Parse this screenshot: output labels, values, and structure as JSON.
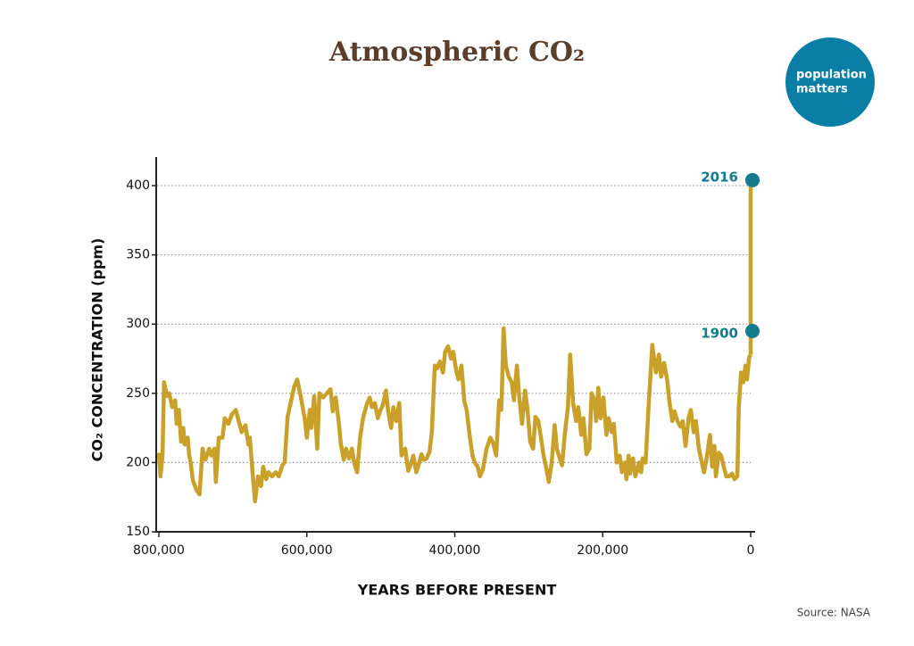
{
  "chart_data": {
    "type": "line",
    "title": "Atmospheric CO₂",
    "x_label": "YEARS BEFORE PRESENT",
    "y_label": "CO₂ CONCENTRATION (ppm)",
    "color": "#c9a12a",
    "x": [
      800000,
      798000,
      795000,
      793000,
      789000,
      786000,
      782000,
      778000,
      776000,
      773000,
      770000,
      767000,
      765000,
      761000,
      759000,
      757000,
      754000,
      749000,
      745000,
      741000,
      737000,
      732000,
      729000,
      725000,
      723000,
      719000,
      714000,
      711000,
      706000,
      701000,
      696000,
      691000,
      688000,
      683000,
      679000,
      677000,
      673000,
      670000,
      666000,
      662000,
      659000,
      655000,
      652000,
      647000,
      642000,
      638000,
      633000,
      630000,
      626000,
      621000,
      617000,
      613000,
      608000,
      603000,
      600000,
      596000,
      594000,
      590000,
      586000,
      583000,
      578000,
      573000,
      568000,
      565000,
      561000,
      557000,
      554000,
      550000,
      547000,
      543000,
      539000,
      536000,
      532000,
      528000,
      524000,
      519000,
      515000,
      512000,
      508000,
      504000,
      501000,
      497000,
      493000,
      490000,
      486000,
      483000,
      479000,
      475000,
      472000,
      467000,
      463000,
      460000,
      456000,
      452000,
      449000,
      445000,
      442000,
      438000,
      434000,
      431000,
      427000,
      424000,
      420000,
      416000,
      413000,
      409000,
      405000,
      402000,
      398000,
      395000,
      391000,
      387000,
      384000,
      380000,
      376000,
      373000,
      369000,
      366000,
      362000,
      357000,
      352000,
      348000,
      344000,
      340000,
      337000,
      334000,
      331000,
      327000,
      323000,
      320000,
      316000,
      313000,
      309000,
      305000,
      302000,
      298000,
      294000,
      291000,
      287000,
      284000,
      280000,
      276000,
      273000,
      269000,
      265000,
      262000,
      258000,
      255000,
      251000,
      247000,
      244000,
      240000,
      236000,
      233000,
      229000,
      226000,
      222000,
      218000,
      215000,
      211000,
      209000,
      206000,
      203000,
      199000,
      195000,
      192000,
      188000,
      185000,
      181000,
      177000,
      174000,
      170000,
      168000,
      165000,
      163000,
      159000,
      156000,
      153000,
      151000,
      148000,
      146000,
      142000,
      138000,
      133000,
      128000,
      124000,
      121000,
      117000,
      113000,
      110000,
      106000,
      103000,
      99000,
      95000,
      92000,
      88000,
      84000,
      81000,
      77000,
      74000,
      70000,
      66000,
      63000,
      59000,
      55000,
      52000,
      49000,
      47000,
      43000,
      40000,
      36000,
      33000,
      29000,
      25000,
      22000,
      18000,
      16000,
      13000,
      10000,
      7000,
      5000,
      2000,
      0
    ],
    "values": [
      207,
      190,
      205,
      258,
      248,
      250,
      240,
      245,
      228,
      238,
      215,
      225,
      213,
      218,
      205,
      200,
      187,
      180,
      177,
      210,
      202,
      210,
      205,
      210,
      186,
      218,
      218,
      232,
      228,
      235,
      238,
      228,
      222,
      227,
      213,
      218,
      190,
      172,
      190,
      183,
      197,
      188,
      193,
      190,
      193,
      190,
      198,
      200,
      233,
      245,
      255,
      260,
      247,
      232,
      218,
      238,
      225,
      248,
      210,
      250,
      247,
      250,
      253,
      237,
      247,
      230,
      213,
      202,
      210,
      203,
      210,
      200,
      193,
      218,
      232,
      242,
      247,
      240,
      243,
      232,
      237,
      242,
      252,
      237,
      225,
      240,
      230,
      243,
      205,
      210,
      194,
      198,
      205,
      193,
      198,
      206,
      202,
      203,
      208,
      222,
      270,
      268,
      273,
      265,
      280,
      284,
      275,
      280,
      266,
      260,
      270,
      244,
      238,
      220,
      205,
      200,
      197,
      190,
      195,
      210,
      218,
      214,
      205,
      245,
      238,
      297,
      270,
      262,
      258,
      245,
      270,
      248,
      228,
      252,
      240,
      215,
      210,
      233,
      230,
      220,
      205,
      195,
      186,
      200,
      227,
      210,
      203,
      198,
      222,
      240,
      278,
      243,
      230,
      240,
      220,
      232,
      206,
      210,
      250,
      245,
      230,
      254,
      232,
      247,
      220,
      232,
      222,
      228,
      200,
      205,
      193,
      200,
      188,
      205,
      192,
      203,
      190,
      195,
      200,
      193,
      203,
      200,
      240,
      285,
      265,
      278,
      262,
      272,
      260,
      245,
      230,
      237,
      230,
      226,
      230,
      212,
      232,
      238,
      222,
      230,
      210,
      200,
      193,
      205,
      220,
      197,
      212,
      190,
      207,
      205,
      196,
      190,
      190,
      192,
      188,
      190,
      240,
      265,
      258,
      270,
      260,
      276,
      278
    ],
    "xlim": [
      800000,
      0
    ],
    "ylim": [
      150,
      420
    ],
    "xticks": [
      {
        "value": 800000,
        "label": "800,000"
      },
      {
        "value": 600000,
        "label": "600,000"
      },
      {
        "value": 400000,
        "label": "400,000"
      },
      {
        "value": 200000,
        "label": "200,000"
      },
      0
    ],
    "yticks": [
      150,
      200,
      250,
      300,
      350,
      400
    ],
    "grid": true,
    "annotation_color": "#127c8c",
    "annotations": [
      {
        "label": "2016",
        "x": 0,
        "y": 404
      },
      {
        "label": "1900",
        "x": 0,
        "y": 295
      }
    ]
  },
  "logo": {
    "lines": [
      "population",
      "matters"
    ]
  },
  "source": "Source: NASA"
}
